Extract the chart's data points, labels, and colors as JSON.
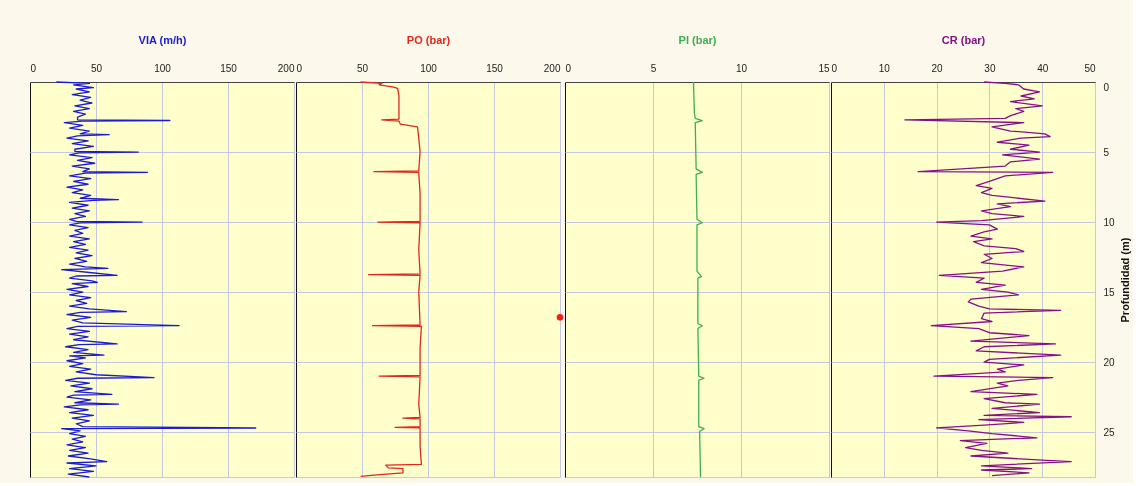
{
  "chart_data": [
    {
      "type": "line",
      "xlabel": "VIA (m/h)",
      "xlim": [
        0,
        200
      ],
      "xticks": [
        0,
        50,
        100,
        150,
        200
      ],
      "ylim": [
        28.2,
        0
      ],
      "yticks": [
        0,
        5,
        10,
        15,
        20,
        25
      ],
      "grid": true,
      "tick_labels": "x",
      "line_style": "solid",
      "series": [
        {
          "color": "#1c1ccf",
          "x": [
            20,
            45,
            33,
            48,
            35,
            45,
            32,
            46,
            38,
            47,
            34,
            45,
            33,
            42,
            36,
            36,
            106,
            40,
            26,
            40,
            30,
            45,
            38,
            60,
            36,
            28,
            44,
            32,
            48,
            34,
            34,
            82,
            38,
            30,
            47,
            36,
            49,
            32,
            45,
            40,
            89,
            42,
            30,
            46,
            33,
            44,
            28,
            40,
            32,
            46,
            38,
            67,
            48,
            30,
            44,
            32,
            45,
            34,
            42,
            30,
            35,
            85,
            38,
            30,
            44,
            34,
            40,
            30,
            45,
            33,
            42,
            30,
            44,
            35,
            47,
            34,
            43,
            30,
            42,
            59,
            24,
            45,
            66,
            35,
            30,
            47,
            51,
            32,
            44,
            28,
            40,
            30,
            46,
            35,
            43,
            30,
            45,
            73,
            38,
            28,
            46,
            32,
            40,
            113,
            36,
            28,
            45,
            30,
            44,
            33,
            66,
            37,
            27,
            44,
            33,
            56,
            30,
            42,
            28,
            40,
            30,
            46,
            35,
            50,
            94,
            36,
            27,
            45,
            31,
            47,
            34,
            62,
            33,
            28,
            46,
            34,
            67,
            38,
            26,
            44,
            30,
            48,
            32,
            45,
            35,
            40,
            171,
            24,
            38,
            30,
            42,
            32,
            40,
            28,
            42,
            30,
            44,
            29,
            46,
            58,
            28,
            50,
            30,
            48,
            29,
            45
          ],
          "values": [
            0.0,
            0.1,
            0.2,
            0.4,
            0.5,
            0.7,
            0.9,
            1.1,
            1.3,
            1.5,
            1.7,
            1.9,
            2.1,
            2.3,
            2.5,
            2.7,
            2.75,
            2.8,
            2.9,
            3.1,
            3.3,
            3.5,
            3.7,
            3.76,
            3.85,
            4.0,
            4.2,
            4.4,
            4.6,
            4.8,
            4.95,
            5.0,
            5.05,
            5.2,
            5.4,
            5.6,
            5.8,
            6.0,
            6.2,
            6.4,
            6.45,
            6.5,
            6.7,
            6.9,
            7.1,
            7.3,
            7.5,
            7.7,
            7.9,
            8.1,
            8.3,
            8.4,
            8.45,
            8.6,
            8.8,
            9.0,
            9.2,
            9.4,
            9.6,
            9.8,
            9.95,
            10.0,
            10.05,
            10.2,
            10.4,
            10.6,
            10.8,
            11.0,
            11.2,
            11.4,
            11.6,
            11.8,
            12.0,
            12.2,
            12.4,
            12.6,
            12.8,
            13.0,
            13.2,
            13.3,
            13.4,
            13.6,
            13.8,
            13.85,
            14.0,
            14.2,
            14.3,
            14.4,
            14.6,
            14.8,
            15.0,
            15.2,
            15.4,
            15.6,
            15.8,
            16.0,
            16.2,
            16.4,
            16.45,
            16.6,
            16.8,
            17.0,
            17.2,
            17.4,
            17.45,
            17.6,
            17.8,
            18.0,
            18.2,
            18.4,
            18.7,
            18.75,
            18.9,
            19.1,
            19.3,
            19.5,
            19.55,
            19.7,
            19.9,
            20.1,
            20.3,
            20.5,
            20.7,
            20.9,
            21.1,
            21.15,
            21.3,
            21.5,
            21.7,
            21.9,
            22.1,
            22.3,
            22.35,
            22.5,
            22.7,
            22.9,
            23.0,
            23.05,
            23.2,
            23.4,
            23.6,
            23.8,
            24.0,
            24.2,
            24.4,
            24.6,
            24.7,
            24.75,
            24.9,
            25.1,
            25.3,
            25.5,
            25.7,
            25.9,
            26.1,
            26.3,
            26.5,
            26.7,
            26.9,
            27.1,
            27.2,
            27.4,
            27.6,
            27.8,
            28.0,
            28.2
          ]
        }
      ]
    },
    {
      "type": "line",
      "xlabel": "PO (bar)",
      "xlim": [
        0,
        200
      ],
      "xticks": [
        0,
        50,
        100,
        150,
        200
      ],
      "ylim": [
        28.2,
        0
      ],
      "yticks": [
        0,
        5,
        10,
        15,
        20,
        25
      ],
      "grid": true,
      "tick_labels": "x",
      "line_style": "solid",
      "series": [
        {
          "color": "#e3261b",
          "x": [
            49,
            65,
            63,
            73,
            77,
            78,
            78,
            78,
            65,
            78,
            79,
            92,
            93,
            94,
            93,
            59,
            93,
            94,
            94,
            62,
            94,
            93,
            94,
            55,
            94,
            93,
            94,
            58,
            95,
            94,
            94,
            63,
            94,
            93,
            94,
            81,
            94,
            94,
            75,
            94,
            94,
            95,
            68,
            70,
            81,
            81,
            61,
            49
          ],
          "values": [
            0.0,
            0.1,
            0.2,
            0.35,
            0.45,
            1.0,
            2.0,
            2.65,
            2.7,
            2.8,
            3.0,
            3.2,
            4.0,
            5.0,
            6.35,
            6.4,
            6.45,
            8.0,
            9.95,
            10.0,
            10.05,
            12.0,
            13.7,
            13.75,
            13.8,
            15.0,
            17.35,
            17.4,
            17.45,
            19.0,
            20.95,
            21.0,
            21.05,
            23.0,
            23.95,
            24.0,
            24.05,
            24.6,
            24.65,
            24.7,
            26.0,
            27.3,
            27.35,
            27.55,
            27.6,
            27.9,
            28.05,
            28.15
          ]
        },
        {
          "type": "scatter",
          "marker": "circle",
          "color": "#ff1a1a",
          "x": [
            200
          ],
          "values": [
            16.8
          ]
        }
      ]
    },
    {
      "type": "line",
      "xlabel": "PI (bar)",
      "xlim": [
        0,
        15
      ],
      "xticks": [
        0,
        5,
        10,
        15
      ],
      "ylim": [
        28.2,
        0
      ],
      "yticks": [
        0,
        5,
        10,
        15,
        20,
        25
      ],
      "grid": true,
      "tick_labels": "x",
      "line_style": "solid",
      "series": [
        {
          "color": "#3fae4f",
          "x": [
            7.3,
            7.35,
            7.4,
            7.8,
            7.4,
            7.45,
            7.8,
            7.45,
            7.5,
            7.8,
            7.5,
            7.5,
            7.75,
            7.55,
            7.55,
            7.8,
            7.55,
            7.6,
            7.9,
            7.6,
            7.6,
            7.9,
            7.65,
            7.7
          ],
          "values": [
            0.0,
            2.2,
            2.6,
            2.75,
            2.9,
            6.2,
            6.45,
            6.6,
            9.8,
            10.05,
            10.2,
            13.5,
            13.9,
            14.0,
            17.25,
            17.4,
            17.6,
            21.0,
            21.15,
            21.3,
            24.6,
            24.75,
            24.95,
            28.2
          ]
        }
      ]
    },
    {
      "type": "line",
      "xlabel": "CR (bar)",
      "ylabel": "Profundidad (m)",
      "xlim": [
        0,
        50
      ],
      "xticks": [
        0,
        10,
        20,
        30,
        40,
        50
      ],
      "ylim": [
        28.2,
        0
      ],
      "yticks": [
        0,
        5,
        10,
        15,
        20,
        25
      ],
      "grid": true,
      "line_style": "solid",
      "series": [
        {
          "color": "#86108a",
          "x": [
            29,
            33,
            35.5,
            36.5,
            39.5,
            36,
            38.5,
            34,
            40,
            35,
            36.5,
            34,
            33,
            14,
            36.5,
            30.5,
            34,
            40.5,
            41.5,
            36,
            31.5,
            37.5,
            34,
            39.5,
            32.5,
            39.5,
            34,
            33,
            16.5,
            42,
            33,
            31.5,
            30,
            27.5,
            30.5,
            28.5,
            30.5,
            40.5,
            31.5,
            34,
            28.5,
            30.5,
            36.5,
            28.5,
            20,
            30,
            31.5,
            29,
            26.5,
            30.5,
            27,
            29,
            35,
            36.5,
            29,
            30.5,
            28.5,
            36.5,
            32.5,
            20.5,
            29,
            27.5,
            33,
            28.5,
            33.5,
            35.5,
            26.5,
            26,
            28,
            30,
            43.5,
            29,
            28.5,
            30.5,
            19,
            28,
            30,
            37.5,
            26.5,
            42.5,
            29,
            27.5,
            43.5,
            30,
            29,
            36.5,
            31.5,
            33,
            19.5,
            42,
            35.5,
            31.5,
            33.5,
            26.5,
            39,
            29,
            33,
            39.5,
            30.5,
            39.5,
            29,
            45.5,
            28,
            36.5,
            29,
            20,
            26,
            30.5,
            39,
            24.5,
            29.5,
            25.5,
            28.5,
            33.5,
            26.5,
            40,
            45.5,
            28.5,
            38,
            28.5,
            37.5,
            30.5
          ],
          "values": [
            0.0,
            0.1,
            0.2,
            0.5,
            0.7,
            1.0,
            1.2,
            1.4,
            1.7,
            1.9,
            2.1,
            2.4,
            2.6,
            2.7,
            2.9,
            3.2,
            3.5,
            3.7,
            3.9,
            4.0,
            4.3,
            4.5,
            4.8,
            5.0,
            5.2,
            5.5,
            5.7,
            6.0,
            6.4,
            6.45,
            6.7,
            6.9,
            7.1,
            7.4,
            7.6,
            7.9,
            8.1,
            8.5,
            8.7,
            8.9,
            9.2,
            9.4,
            9.6,
            9.9,
            10.0,
            10.2,
            10.5,
            10.7,
            11.0,
            11.2,
            11.4,
            11.7,
            11.9,
            12.1,
            12.3,
            12.6,
            12.9,
            13.2,
            13.5,
            13.8,
            14.0,
            14.3,
            14.5,
            14.8,
            15.0,
            15.2,
            15.5,
            15.7,
            16.0,
            16.2,
            16.3,
            16.5,
            16.9,
            17.1,
            17.4,
            17.6,
            17.9,
            18.1,
            18.5,
            18.7,
            18.9,
            19.2,
            19.5,
            19.8,
            20.0,
            20.2,
            20.5,
            20.7,
            21.0,
            21.1,
            21.3,
            21.5,
            21.7,
            22.1,
            22.3,
            22.6,
            22.9,
            23.0,
            23.3,
            23.6,
            23.8,
            23.9,
            24.1,
            24.3,
            24.5,
            24.7,
            24.9,
            25.1,
            25.4,
            25.6,
            25.8,
            26.1,
            26.3,
            26.5,
            26.7,
            27.0,
            27.1,
            27.4,
            27.6,
            27.7,
            27.9,
            28.1
          ]
        }
      ]
    }
  ]
}
